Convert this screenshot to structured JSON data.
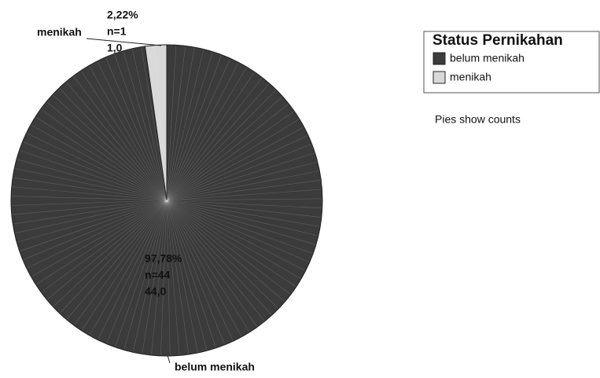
{
  "chart_data": {
    "type": "pie",
    "legend_title": "Status Pernikahan",
    "note": "Pies show counts",
    "categories": [
      "belum menikah",
      "menikah"
    ],
    "values": [
      44,
      1
    ],
    "value_labels": [
      "44,0",
      "1,0"
    ],
    "percents": [
      97.78,
      2.22
    ],
    "percent_labels": [
      "97,78%",
      "2,22%"
    ],
    "n_labels": [
      "n=44",
      "n=1"
    ],
    "colors": [
      "#3b3b3b",
      "#d9d9d9"
    ]
  }
}
